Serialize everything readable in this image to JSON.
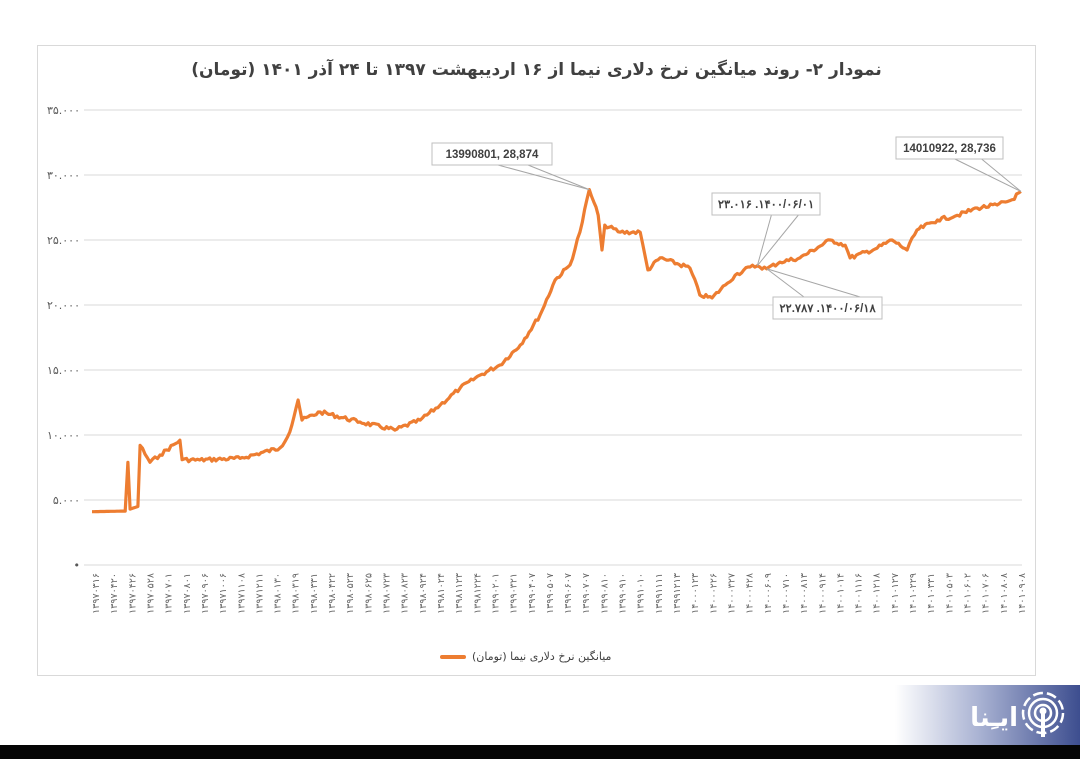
{
  "chart_data": {
    "type": "line",
    "title": "نمودار ۲- روند میانگین نرخ دلاری نیما از ۱۶ اردیبهشت ۱۳۹۷ تا ۲۴ آذر ۱۴۰۱ (تومان)",
    "xlabel": "",
    "ylabel": "",
    "ylim": [
      0,
      35000
    ],
    "y_ticks": [
      0,
      5000,
      10000,
      15000,
      20000,
      25000,
      30000,
      35000
    ],
    "y_tick_labels": [
      "•",
      "۵.۰۰۰",
      "۱۰.۰۰۰",
      "۱۵.۰۰۰",
      "۲۰.۰۰۰",
      "۲۵.۰۰۰",
      "۳۰.۰۰۰",
      "۳۵.۰۰۰"
    ],
    "grid": "horizontal",
    "legend_placement": "bottom",
    "x_tick_labels": [
      "۱۳۹۷۰۳۱۶",
      "۱۳۹۷۰۴۲۰",
      "۱۳۹۷۰۴۲۶",
      "۱۳۹۷۰۵۲۸",
      "۱۳۹۷۰۷۰۱",
      "۱۳۹۷۰۸۰۱",
      "۱۳۹۷۰۹۰۶",
      "۱۳۹۷۱۰۰۶",
      "۱۳۹۷۱۱۰۸",
      "۱۳۹۷۱۲۱۱",
      "۱۳۹۸۰۱۳۰",
      "۱۳۹۸۰۳۱۹",
      "۱۳۹۸۰۳۳۱",
      "۱۳۹۸۰۴۲۲",
      "۱۳۹۸۰۵۲۳",
      "۱۳۹۸۰۶۲۵",
      "۱۳۹۸۰۷۲۳",
      "۱۳۹۸۰۸۲۳",
      "۱۳۹۸۰۹۲۴",
      "۱۳۹۸۱۰۲۴",
      "۱۳۹۸۱۱۲۳",
      "۱۳۹۸۱۲۲۴",
      "۱۳۹۹۰۲۰۱",
      "۱۳۹۹۰۳۲۱",
      "۱۳۹۹۰۴۰۷",
      "۱۳۹۹۰۵۰۷",
      "۱۳۹۹۰۶۰۷",
      "۱۳۹۹۰۷۰۷",
      "۱۳۹۹۰۸۱۰",
      "۱۳۹۹۰۹۱۰",
      "۱۳۹۹۱۰۱۰",
      "۱۳۹۹۱۱۱۱",
      "۱۳۹۹۱۲۱۳",
      "۱۴۰۰۰۱۲۳",
      "۱۴۰۰۰۲۲۶",
      "۱۴۰۰۰۳۲۷",
      "۱۴۰۰۰۴۲۸",
      "۱۴۰۰۰۶۰۹",
      "۱۴۰۰۰۷۱۰",
      "۱۴۰۰۰۸۱۳",
      "۱۴۰۰۰۹۱۴",
      "۱۴۰۰۱۰۱۴",
      "۱۴۰۰۱۱۱۶",
      "۱۴۰۰۱۲۱۸",
      "۱۴۰۱۰۱۲۷",
      "۱۴۰۱۰۲۲۹",
      "۱۴۰۱۰۳۳۱",
      "۱۴۰۱۰۵۰۳",
      "۱۴۰۱۰۶۰۲",
      "۱۴۰۱۰۷۰۶",
      "۱۴۰۱۰۸۰۸",
      "۱۴۰۱۰۹۰۸"
    ],
    "x_range": [
      "13970216",
      "14010924"
    ],
    "series": [
      {
        "name": "میانگین نرخ دلاری نیما (تومان)",
        "color": "#ed7d31",
        "x": [
          "13970216",
          "13970414",
          "13970419",
          "13970423",
          "13970506",
          "13970510",
          "13970528",
          "13970615",
          "13970720",
          "13970724",
          "13970826",
          "13971109",
          "13980122",
          "13980209",
          "13980224",
          "13980231",
          "13980402",
          "13980612",
          "13980814",
          "13980930",
          "13981106",
          "13981212",
          "13990119",
          "13990224",
          "13990330",
          "13990504",
          "13990531",
          "13990627",
          "13990714",
          "13990801",
          "13990817",
          "13990824",
          "13990829",
          "13990927",
          "13991103",
          "13991117",
          "13991209",
          "14000203",
          "14000221",
          "14000312",
          "14000405",
          "14000423",
          "14000519",
          "14000601",
          "14000618",
          "14000711",
          "14000817",
          "14001012",
          "14001109",
          "14001118",
          "14010108",
          "14010204",
          "14010231",
          "14010318",
          "14010424",
          "14010529",
          "14010703",
          "14010809",
          "14010906",
          "14010922"
        ],
        "y": [
          4100,
          4150,
          7900,
          4300,
          4500,
          9200,
          7900,
          8460,
          9600,
          8100,
          8080,
          8200,
          9000,
          10230,
          12690,
          11150,
          11770,
          11000,
          10380,
          11150,
          12300,
          13600,
          14600,
          15380,
          16920,
          19230,
          21920,
          23080,
          25600,
          28874,
          26900,
          24230,
          26150,
          25600,
          25600,
          22700,
          23620,
          22850,
          20770,
          20540,
          21540,
          22300,
          22920,
          23016,
          22787,
          23300,
          23620,
          25000,
          24600,
          23620,
          24380,
          25000,
          24230,
          25770,
          26540,
          26900,
          27460,
          27690,
          28100,
          28736
        ]
      }
    ],
    "annotations": [
      {
        "text": "13990801, 28,874",
        "x": "13990801",
        "y": 28874
      },
      {
        "text": "۲۳.۰۱۶ .۱۴۰۰/۰۶/۰۱",
        "x": "14000601",
        "y": 23016
      },
      {
        "text": "۲۲.۷۸۷ .۱۴۰۰/۰۶/۱۸",
        "x": "14000618",
        "y": 22787
      },
      {
        "text": "14010922, 28,736",
        "x": "14010922",
        "y": 28736
      }
    ]
  },
  "legend": {
    "label": "میانگین نرخ دلاری نیما (تومان)"
  },
  "logo": {
    "text": "ایـِنا"
  }
}
